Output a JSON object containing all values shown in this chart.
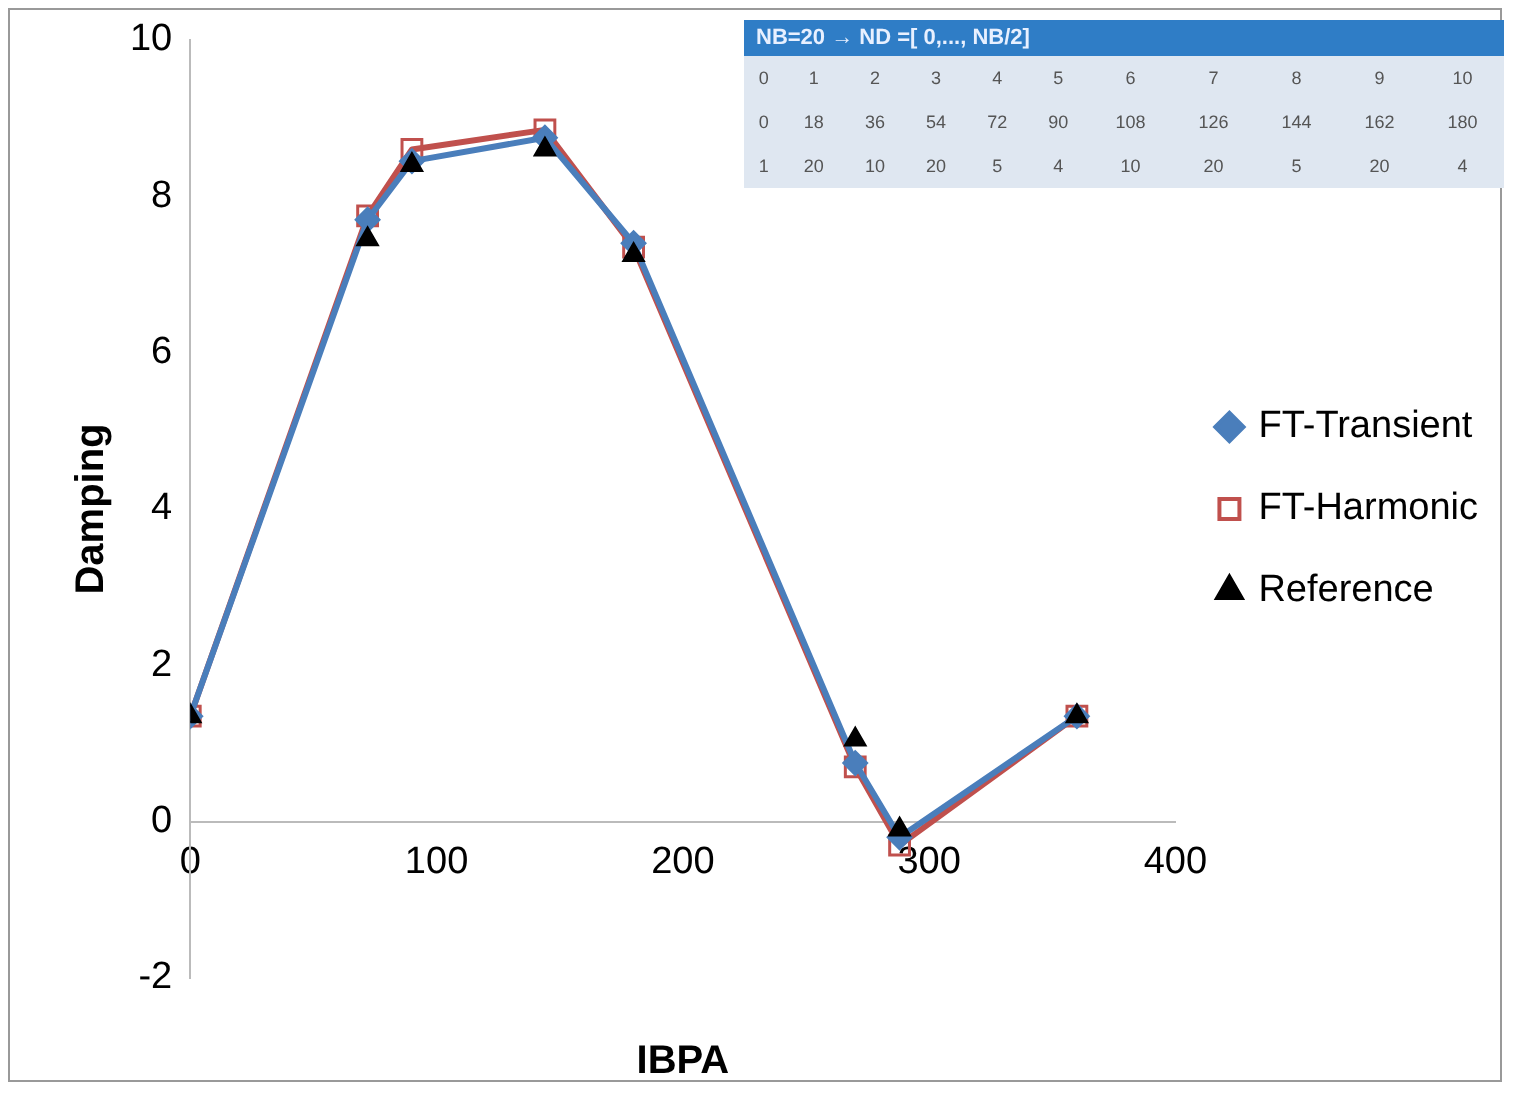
{
  "chart_data": {
    "type": "line",
    "xlabel": "IBPA",
    "ylabel": "Damping",
    "x": [
      0,
      72,
      90,
      144,
      180,
      270,
      288,
      360
    ],
    "xlim": [
      0,
      400
    ],
    "xticks": [
      0,
      100,
      200,
      300,
      400
    ],
    "ylim": [
      -2,
      10
    ],
    "yticks": [
      -2,
      0,
      2,
      4,
      6,
      8,
      10
    ],
    "grid": false,
    "legend": "right",
    "series": [
      {
        "name": "FT-Transient",
        "marker": "diamond",
        "color": "#4a7ebb",
        "values": [
          1.35,
          7.7,
          8.45,
          8.75,
          7.4,
          0.75,
          -0.2,
          1.35
        ]
      },
      {
        "name": "FT-Harmonic",
        "marker": "square",
        "color": "#c0504d",
        "values": [
          1.35,
          7.75,
          8.6,
          8.85,
          7.35,
          0.7,
          -0.3,
          1.35
        ]
      },
      {
        "name": "Reference",
        "type": "scatter",
        "marker": "triangle",
        "color": "#000000",
        "values": [
          1.35,
          7.45,
          8.4,
          8.6,
          7.25,
          1.05,
          -0.1,
          1.35
        ]
      }
    ],
    "annotations": [
      "NB=20 → ND =[ 0,..., NB/2]",
      "0 1 2 3 4 5 6 7 8 9 10",
      "0 18 36 54 72 90 108 126 144 162 180",
      "1 20 10 20 5 4 10 20 5 20 4"
    ]
  }
}
